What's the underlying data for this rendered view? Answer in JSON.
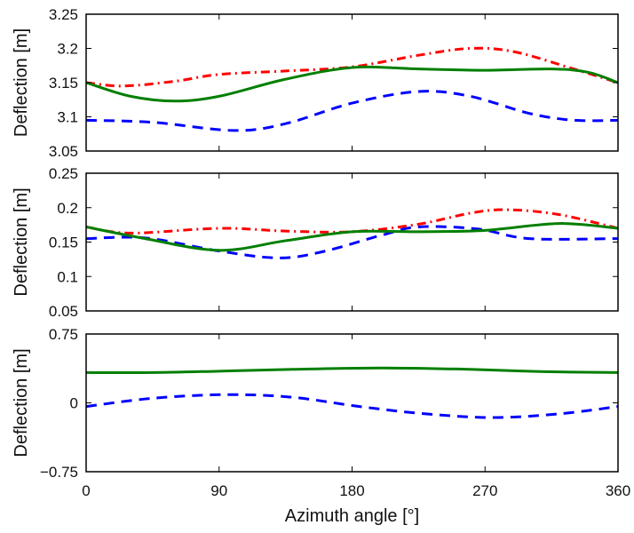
{
  "chart_data": [
    {
      "type": "line",
      "xlabel": "",
      "ylabel": "Deflection [m]",
      "xlim": [
        0,
        360
      ],
      "ylim": [
        3.05,
        3.25
      ],
      "xticks": [
        0,
        90,
        180,
        270,
        360
      ],
      "xtick_labels_shown": false,
      "yticks": [
        "3.05",
        "3.1",
        "3.15",
        "3.2",
        "3.25"
      ],
      "grid": false,
      "series": [
        {
          "color": "#0000ff",
          "style": "dashed",
          "x": [
            0,
            45,
            100,
            135,
            180,
            225,
            260,
            300,
            330,
            360
          ],
          "y": [
            3.095,
            3.092,
            3.08,
            3.09,
            3.12,
            3.137,
            3.13,
            3.105,
            3.095,
            3.095
          ]
        },
        {
          "color": "#ff0000",
          "style": "dash-dot",
          "x": [
            0,
            25,
            60,
            90,
            135,
            180,
            225,
            260,
            290,
            330,
            360
          ],
          "y": [
            3.15,
            3.145,
            3.152,
            3.162,
            3.167,
            3.173,
            3.19,
            3.2,
            3.195,
            3.17,
            3.15
          ]
        },
        {
          "color": "#007f00",
          "style": "solid",
          "x": [
            0,
            30,
            60,
            90,
            135,
            180,
            225,
            270,
            315,
            340,
            360
          ],
          "y": [
            3.15,
            3.13,
            3.123,
            3.13,
            3.155,
            3.172,
            3.17,
            3.168,
            3.17,
            3.165,
            3.15
          ]
        }
      ]
    },
    {
      "type": "line",
      "xlabel": "",
      "ylabel": "Deflection [m]",
      "xlim": [
        0,
        360
      ],
      "ylim": [
        0.05,
        0.25
      ],
      "xticks": [
        0,
        90,
        180,
        270,
        360
      ],
      "xtick_labels_shown": false,
      "yticks": [
        "0.05",
        "0.1",
        "0.15",
        "0.2",
        "0.25"
      ],
      "grid": false,
      "series": [
        {
          "color": "#0000ff",
          "style": "dashed",
          "x": [
            0,
            40,
            90,
            130,
            160,
            200,
            225,
            265,
            300,
            360
          ],
          "y": [
            0.155,
            0.156,
            0.137,
            0.127,
            0.136,
            0.16,
            0.172,
            0.169,
            0.155,
            0.155
          ]
        },
        {
          "color": "#ff0000",
          "style": "dash-dot",
          "x": [
            0,
            30,
            90,
            135,
            180,
            225,
            260,
            285,
            320,
            360
          ],
          "y": [
            0.172,
            0.163,
            0.17,
            0.166,
            0.165,
            0.176,
            0.192,
            0.197,
            0.19,
            0.17
          ]
        },
        {
          "color": "#007f00",
          "style": "solid",
          "x": [
            0,
            40,
            90,
            135,
            180,
            225,
            270,
            320,
            360
          ],
          "y": [
            0.172,
            0.155,
            0.138,
            0.152,
            0.165,
            0.165,
            0.167,
            0.177,
            0.17
          ]
        }
      ]
    },
    {
      "type": "line",
      "xlabel": "Azimuth angle [°]",
      "ylabel": "Deflection [m]",
      "xlim": [
        0,
        360
      ],
      "ylim": [
        -0.75,
        0.75
      ],
      "xticks": [
        0,
        90,
        180,
        270,
        360
      ],
      "xtick_labels": [
        "0",
        "90",
        "180",
        "270",
        "360"
      ],
      "yticks": [
        "−0.75",
        "0",
        "0.75"
      ],
      "ytick_values": [
        -0.75,
        0,
        0.75
      ],
      "grid": false,
      "series": [
        {
          "color": "#0000ff",
          "style": "dashed",
          "x": [
            0,
            45,
            95,
            140,
            185,
            230,
            275,
            320,
            360
          ],
          "y": [
            -0.04,
            0.05,
            0.09,
            0.06,
            -0.04,
            -0.12,
            -0.16,
            -0.12,
            -0.04
          ]
        },
        {
          "color": "#007f00",
          "style": "solid",
          "x": [
            0,
            45,
            90,
            140,
            200,
            260,
            310,
            360
          ],
          "y": [
            0.33,
            0.33,
            0.345,
            0.365,
            0.38,
            0.365,
            0.34,
            0.33
          ]
        }
      ]
    }
  ]
}
